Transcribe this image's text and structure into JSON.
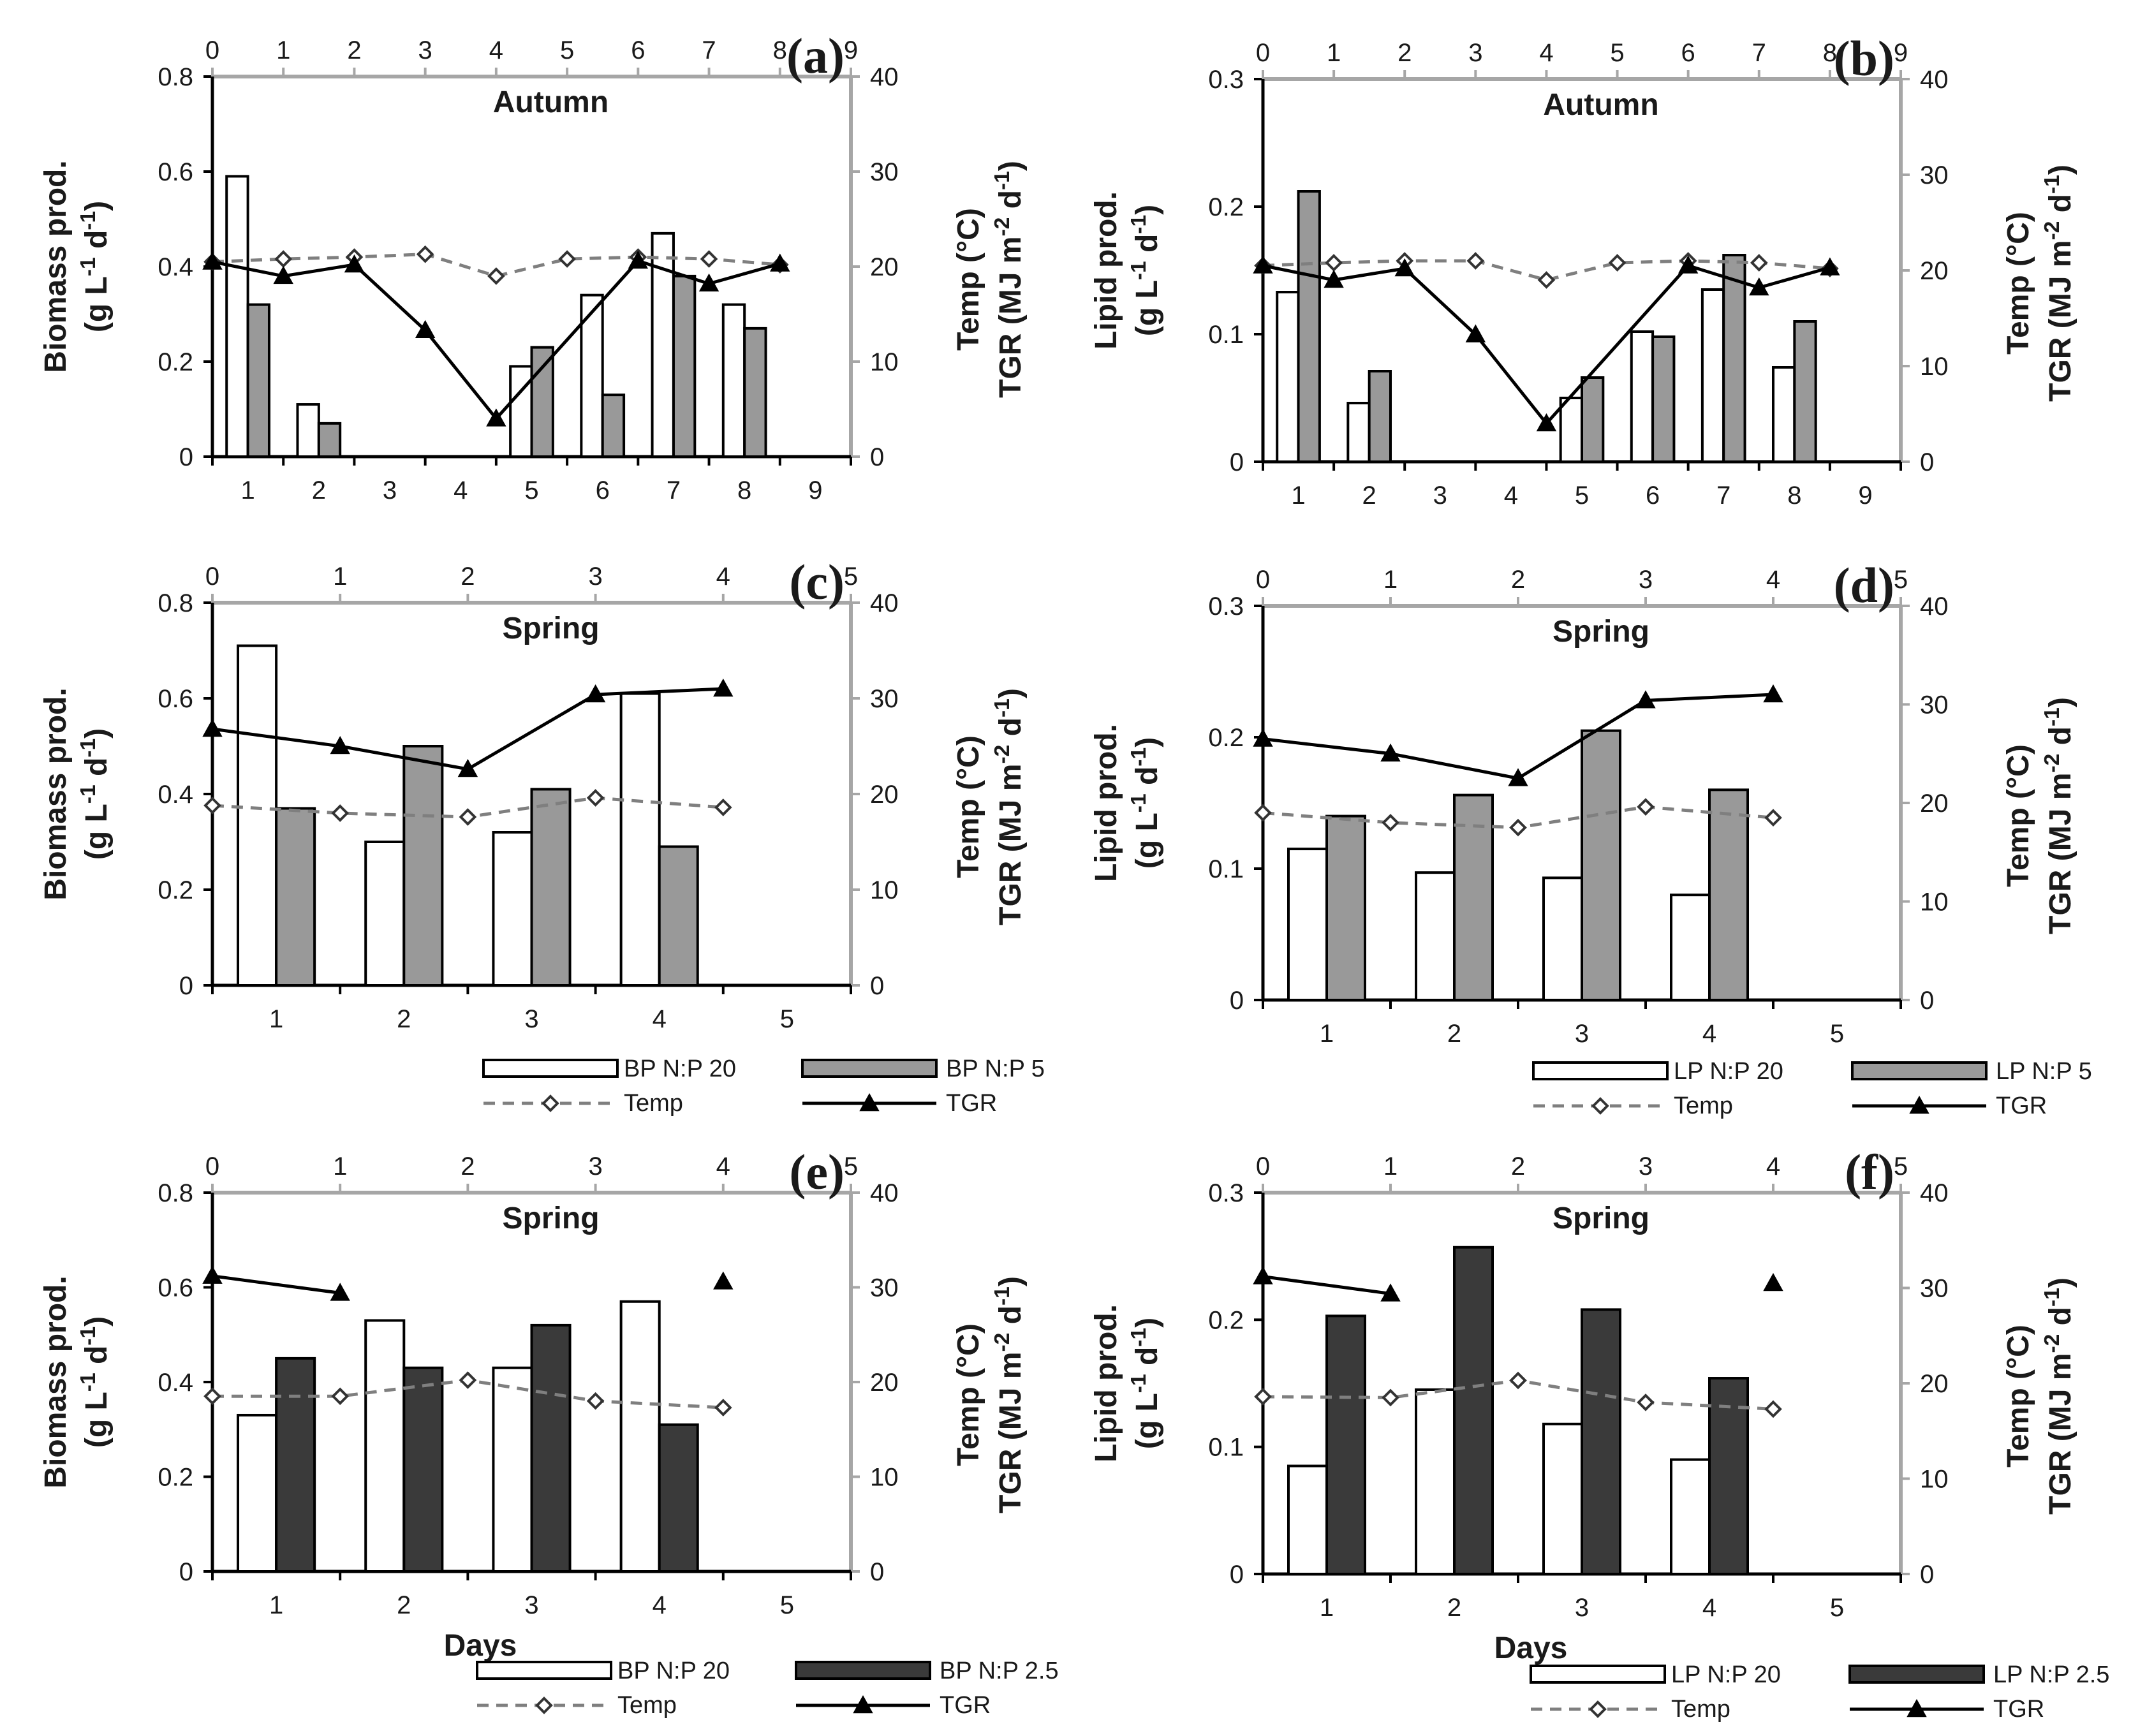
{
  "colors": {
    "bp20": "#ffffff",
    "np5": "#999999",
    "np25": "#3a3a3a",
    "temp_line": "#7f7f7f",
    "tgr_line": "#000000",
    "frame": "#a6a6a6",
    "axis_dark": "#000000"
  },
  "legends": {
    "cd": {
      "left": {
        "bp20": "BP N:P 20",
        "np5": "BP N:P 5",
        "temp": "Temp",
        "tgr": "TGR"
      },
      "right": {
        "bp20": "LP N:P 20",
        "np5": "LP N:P 5",
        "temp": "Temp",
        "tgr": "TGR"
      }
    },
    "ef": {
      "left": {
        "bp20": "BP N:P 20",
        "np25": "BP N:P 2.5",
        "temp": "Temp",
        "tgr": "TGR"
      },
      "right": {
        "bp20": "LP N:P 20",
        "np25": "LP N:P 2.5",
        "temp": "Temp",
        "tgr": "TGR"
      }
    }
  },
  "chart_data": [
    {
      "panel": "(a)",
      "type": "bar",
      "title": "Autumn",
      "ylabel": [
        "Biomass prod.",
        "(g L-1 d-1)"
      ],
      "y2label": [
        "Temp (°C)",
        "TGR (MJ m-2 d-1)"
      ],
      "ylim": [
        0,
        0.8
      ],
      "yticks": [
        "0",
        "0.2",
        "0.4",
        "0.6",
        "0.8"
      ],
      "y2lim": [
        0,
        40
      ],
      "y2ticks": [
        "0",
        "10",
        "20",
        "30",
        "40"
      ],
      "categories": [
        "1",
        "2",
        "3",
        "4",
        "5",
        "6",
        "7",
        "8",
        "9"
      ],
      "top_ticks": [
        "0",
        "1",
        "2",
        "3",
        "4",
        "5",
        "6",
        "7",
        "8",
        "9"
      ],
      "top_xlim": [
        0,
        9
      ],
      "series": [
        {
          "name": "BP N:P 20",
          "style": "bp20",
          "values": [
            0.59,
            0.11,
            null,
            null,
            0.19,
            0.34,
            0.47,
            0.32,
            null
          ]
        },
        {
          "name": "BP N:P 5",
          "style": "np5",
          "values": [
            0.32,
            0.07,
            null,
            null,
            0.23,
            0.13,
            0.38,
            0.27,
            null
          ]
        }
      ],
      "temp": {
        "x": [
          0,
          1,
          2,
          3,
          4,
          5,
          6,
          7,
          8
        ],
        "y": [
          20.5,
          20.8,
          21,
          21.3,
          19,
          20.8,
          21,
          20.8,
          20.2
        ]
      },
      "tgr": {
        "x": [
          0,
          1,
          2,
          3,
          4,
          6,
          7,
          8
        ],
        "y": [
          20.5,
          19,
          20.2,
          13.3,
          4,
          20.6,
          18.2,
          20.3
        ]
      }
    },
    {
      "panel": "(b)",
      "type": "bar",
      "title": "Autumn",
      "ylabel": [
        "Lipid prod.",
        "(g L-1 d-1)"
      ],
      "y2label": [
        "Temp (°C)",
        "TGR (MJ m-2 d-1)"
      ],
      "ylim": [
        0,
        0.3
      ],
      "yticks": [
        "0",
        "0.1",
        "0.2",
        "0.3"
      ],
      "y2lim": [
        0,
        40
      ],
      "y2ticks": [
        "0",
        "10",
        "20",
        "30",
        "40"
      ],
      "categories": [
        "1",
        "2",
        "3",
        "4",
        "5",
        "6",
        "7",
        "8",
        "9"
      ],
      "top_ticks": [
        "0",
        "1",
        "2",
        "3",
        "4",
        "5",
        "6",
        "7",
        "8",
        "9"
      ],
      "top_xlim": [
        0,
        9
      ],
      "series": [
        {
          "name": "LP N:P 20",
          "style": "bp20",
          "values": [
            0.133,
            0.046,
            null,
            null,
            0.05,
            0.102,
            0.135,
            0.074,
            null
          ]
        },
        {
          "name": "LP N:P 5",
          "style": "np5",
          "values": [
            0.212,
            0.071,
            null,
            null,
            0.066,
            0.098,
            0.162,
            0.11,
            null
          ]
        }
      ],
      "temp": {
        "x": [
          0,
          1,
          2,
          3,
          4,
          5,
          6,
          7,
          8
        ],
        "y": [
          20.5,
          20.8,
          21,
          21,
          19,
          20.8,
          21,
          20.8,
          20.2
        ]
      },
      "tgr": {
        "x": [
          0,
          1,
          2,
          3,
          4,
          6,
          7,
          8
        ],
        "y": [
          20.5,
          19,
          20.2,
          13.3,
          4,
          20.5,
          18.2,
          20.3
        ]
      }
    },
    {
      "panel": "(c)",
      "type": "bar",
      "title": "Spring",
      "ylabel": [
        "Biomass prod.",
        "(g L-1 d-1)"
      ],
      "y2label": [
        "Temp (°C)",
        "TGR (MJ m-2 d-1)"
      ],
      "ylim": [
        0,
        0.8
      ],
      "yticks": [
        "0",
        "0.2",
        "0.4",
        "0.6",
        "0.8"
      ],
      "y2lim": [
        0,
        40
      ],
      "y2ticks": [
        "0",
        "10",
        "20",
        "30",
        "40"
      ],
      "categories": [
        "1",
        "2",
        "3",
        "4",
        "5"
      ],
      "top_ticks": [
        "0",
        "1",
        "2",
        "3",
        "4",
        "5"
      ],
      "top_xlim": [
        0,
        5
      ],
      "series": [
        {
          "name": "BP N:P 20",
          "style": "bp20",
          "values": [
            0.71,
            0.3,
            0.32,
            0.61,
            null
          ]
        },
        {
          "name": "BP N:P 5",
          "style": "np5",
          "values": [
            0.37,
            0.5,
            0.41,
            0.29,
            null
          ]
        }
      ],
      "temp": {
        "x": [
          0,
          1,
          2,
          3,
          4
        ],
        "y": [
          18.8,
          18,
          17.6,
          19.6,
          18.6
        ]
      },
      "tgr": {
        "x": [
          0,
          1,
          2,
          3,
          4
        ],
        "y": [
          26.8,
          25,
          22.6,
          30.4,
          31
        ]
      }
    },
    {
      "panel": "(d)",
      "type": "bar",
      "title": "Spring",
      "ylabel": [
        "Lipid prod.",
        "(g L-1 d-1)"
      ],
      "y2label": [
        "Temp (°C)",
        "TGR (MJ m-2 d-1)"
      ],
      "ylim": [
        0,
        0.3
      ],
      "yticks": [
        "0",
        "0.1",
        "0.2",
        "0.3"
      ],
      "y2lim": [
        0,
        40
      ],
      "y2ticks": [
        "0",
        "10",
        "20",
        "30",
        "40"
      ],
      "categories": [
        "1",
        "2",
        "3",
        "4",
        "5"
      ],
      "top_ticks": [
        "0",
        "1",
        "2",
        "3",
        "4",
        "5"
      ],
      "top_xlim": [
        0,
        5
      ],
      "series": [
        {
          "name": "LP N:P 20",
          "style": "bp20",
          "values": [
            0.115,
            0.097,
            0.093,
            0.08,
            null
          ]
        },
        {
          "name": "LP N:P 5",
          "style": "np5",
          "values": [
            0.14,
            0.156,
            0.205,
            0.16,
            null
          ]
        }
      ],
      "temp": {
        "x": [
          0,
          1,
          2,
          3,
          4
        ],
        "y": [
          19,
          18,
          17.5,
          19.6,
          18.5
        ]
      },
      "tgr": {
        "x": [
          0,
          1,
          2,
          3,
          4
        ],
        "y": [
          26.5,
          25,
          22.5,
          30.4,
          31
        ]
      }
    },
    {
      "panel": "(e)",
      "type": "bar",
      "title": "Spring",
      "xlabel": "Days",
      "ylabel": [
        "Biomass prod.",
        "(g L-1 d-1)"
      ],
      "y2label": [
        "Temp (°C)",
        "TGR (MJ m-2 d-1)"
      ],
      "ylim": [
        0,
        0.8
      ],
      "yticks": [
        "0",
        "0.2",
        "0.4",
        "0.6",
        "0.8"
      ],
      "y2lim": [
        0,
        40
      ],
      "y2ticks": [
        "0",
        "10",
        "20",
        "30",
        "40"
      ],
      "categories": [
        "1",
        "2",
        "3",
        "4",
        "5"
      ],
      "top_ticks": [
        "0",
        "1",
        "2",
        "3",
        "4",
        "5"
      ],
      "top_xlim": [
        0,
        5
      ],
      "series": [
        {
          "name": "BP N:P 20",
          "style": "bp20",
          "values": [
            0.33,
            0.53,
            0.43,
            0.57,
            null
          ]
        },
        {
          "name": "BP N:P 2.5",
          "style": "np25",
          "values": [
            0.45,
            0.43,
            0.52,
            0.31,
            null
          ]
        }
      ],
      "temp": {
        "x": [
          0,
          1,
          2,
          3,
          4
        ],
        "y": [
          18.5,
          18.5,
          20.2,
          18,
          17.3
        ]
      },
      "tgr": {
        "x": [
          0,
          1,
          4
        ],
        "y": [
          31.2,
          29.4,
          30.6
        ],
        "connected": [
          true,
          false
        ]
      }
    },
    {
      "panel": "(f)",
      "type": "bar",
      "title": "Spring",
      "xlabel": "Days",
      "ylabel": [
        "Lipid prod.",
        "(g L-1 d-1)"
      ],
      "y2label": [
        "Temp (°C)",
        "TGR (MJ m-2 d-1)"
      ],
      "ylim": [
        0,
        0.3
      ],
      "yticks": [
        "0",
        "0.1",
        "0.2",
        "0.3"
      ],
      "y2lim": [
        0,
        40
      ],
      "y2ticks": [
        "0",
        "10",
        "20",
        "30",
        "40"
      ],
      "categories": [
        "1",
        "2",
        "3",
        "4",
        "5"
      ],
      "top_ticks": [
        "0",
        "1",
        "2",
        "3",
        "4",
        "5"
      ],
      "top_xlim": [
        0,
        5
      ],
      "series": [
        {
          "name": "LP N:P 20",
          "style": "bp20",
          "values": [
            0.085,
            0.145,
            0.118,
            0.09,
            null
          ]
        },
        {
          "name": "LP N:P 2.5",
          "style": "np25",
          "values": [
            0.203,
            0.257,
            0.208,
            0.154,
            null
          ]
        }
      ],
      "temp": {
        "x": [
          0,
          1,
          2,
          3,
          4
        ],
        "y": [
          18.6,
          18.5,
          20.3,
          18,
          17.3
        ]
      },
      "tgr": {
        "x": [
          0,
          1,
          4
        ],
        "y": [
          31.2,
          29.4,
          30.5
        ],
        "connected": [
          true,
          false
        ]
      }
    }
  ]
}
